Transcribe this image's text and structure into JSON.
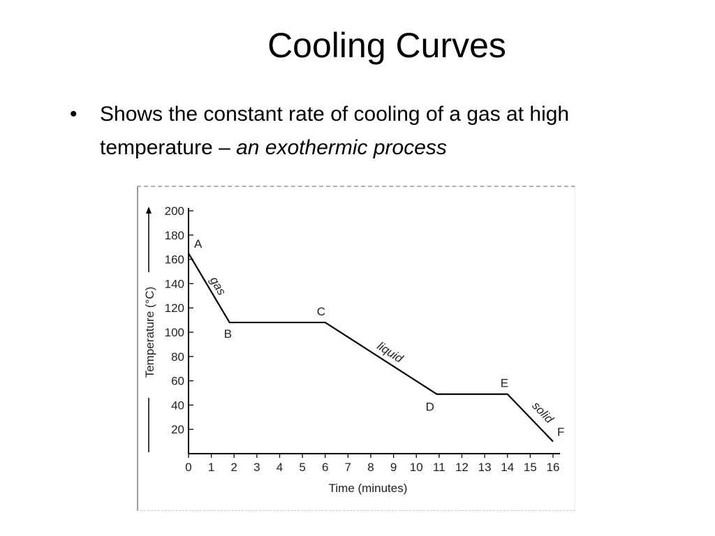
{
  "slide": {
    "title": "Cooling Curves",
    "bullet_text": "Shows the constant rate of cooling of a gas at high temperature – ",
    "bullet_emphasis": "an exothermic process"
  },
  "chart_data": {
    "type": "line",
    "xlabel": "Time (minutes)",
    "ylabel": "Temperature (°C)",
    "xlim": [
      0,
      16
    ],
    "ylim": [
      0,
      200
    ],
    "x_ticks": [
      "0",
      "1",
      "2",
      "3",
      "4",
      "5",
      "6",
      "7",
      "8",
      "9",
      "10",
      "11",
      "12",
      "13",
      "14",
      "15",
      "16"
    ],
    "y_ticks": [
      "20",
      "40",
      "60",
      "80",
      "100",
      "120",
      "140",
      "160",
      "180",
      "200"
    ],
    "grid": false,
    "series": [
      {
        "points": [
          {
            "label": "A",
            "x": 0,
            "y": 165
          },
          {
            "label": "B",
            "x": 1.8,
            "y": 108
          },
          {
            "label": "C",
            "x": 6,
            "y": 108
          },
          {
            "label": "D",
            "x": 10.9,
            "y": 49
          },
          {
            "label": "E",
            "x": 14,
            "y": 49
          },
          {
            "label": "F",
            "x": 16,
            "y": 10
          }
        ]
      }
    ],
    "segment_labels": [
      {
        "text": "gas",
        "from": "A",
        "to": "B"
      },
      {
        "text": "liquid",
        "from": "C",
        "to": "D"
      },
      {
        "text": "solid",
        "from": "E",
        "to": "F"
      }
    ],
    "line_color": "#000000"
  }
}
